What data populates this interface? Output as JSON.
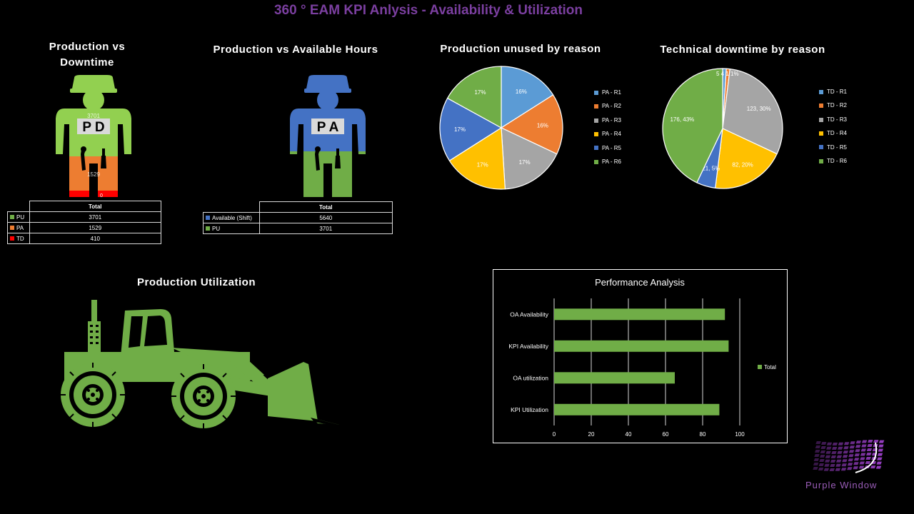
{
  "page": {
    "title": "360 ° EAM KPI Anlysis - Availability & Utilization",
    "brand": "Purple Window"
  },
  "colors": {
    "green": "#70ad47",
    "orange": "#ed7d31",
    "gray": "#a5a5a5",
    "yellow": "#ffc000",
    "blue": "#4472c4",
    "lightblue": "#5b9bd5",
    "red": "#ff0000",
    "purple": "#7030a0"
  },
  "prod_vs_downtime": {
    "title_line1": "Production vs",
    "title_line2": "Downtime",
    "figure_label": "P D",
    "figure_value_top": "3701",
    "figure_value_mid": "1529",
    "figure_value_bot": "0",
    "table": {
      "header": "Total",
      "rows": [
        {
          "key": "PU",
          "value": "3701",
          "color": "#70ad47"
        },
        {
          "key": "PA",
          "value": "1529",
          "color": "#ed7d31"
        },
        {
          "key": "TD",
          "value": "410",
          "color": "#ff0000"
        }
      ]
    }
  },
  "prod_vs_available": {
    "title": "Production vs Available Hours",
    "figure_label": "P A",
    "table": {
      "header": "Total",
      "rows": [
        {
          "key": "Available (Shift)",
          "value": "5640",
          "color": "#4472c4"
        },
        {
          "key": "PU",
          "value": "3701",
          "color": "#70ad47"
        }
      ]
    }
  },
  "production_utilization": {
    "title": "Production Utilization"
  },
  "chart_data": [
    {
      "type": "pie",
      "title": "Production unused by reason",
      "categories": [
        "PA - R1",
        "PA - R2",
        "PA - R3",
        "PA - R4",
        "PA - R5",
        "PA - R6"
      ],
      "values": [
        16,
        16,
        17,
        17,
        17,
        17
      ],
      "labels": [
        "16%",
        "16%",
        "17%",
        "17%",
        "17%",
        "17%"
      ],
      "colors": [
        "#5b9bd5",
        "#ed7d31",
        "#a5a5a5",
        "#ffc000",
        "#4472c4",
        "#70ad47"
      ],
      "legend": "right"
    },
    {
      "type": "pie",
      "title": "Technical downtime by reason",
      "categories": [
        "TD - R1",
        "TD - R2",
        "TD - R3",
        "TD - R4",
        "TD - R5",
        "TD - R6"
      ],
      "values": [
        4,
        4,
        123,
        82,
        21,
        176
      ],
      "labels": [
        "",
        "",
        "123, 30%",
        "82, 20%",
        "21, 5%",
        "176, 43%"
      ],
      "small_label": "5 4 1 1%",
      "colors": [
        "#5b9bd5",
        "#ed7d31",
        "#a5a5a5",
        "#ffc000",
        "#4472c4",
        "#70ad47"
      ],
      "legend": "right"
    },
    {
      "type": "bar",
      "orientation": "horizontal",
      "title": "Performance Analysis",
      "categories": [
        "OA Availability",
        "KPI Availability",
        "OA utilization",
        "KPI Utilization"
      ],
      "series": [
        {
          "name": "Total",
          "values": [
            92,
            94,
            65,
            89
          ],
          "color": "#70ad47"
        }
      ],
      "xlim": [
        0,
        100
      ],
      "ticks": [
        "0",
        "20",
        "40",
        "60",
        "80",
        "100"
      ],
      "grid": true,
      "legend": "right"
    }
  ]
}
